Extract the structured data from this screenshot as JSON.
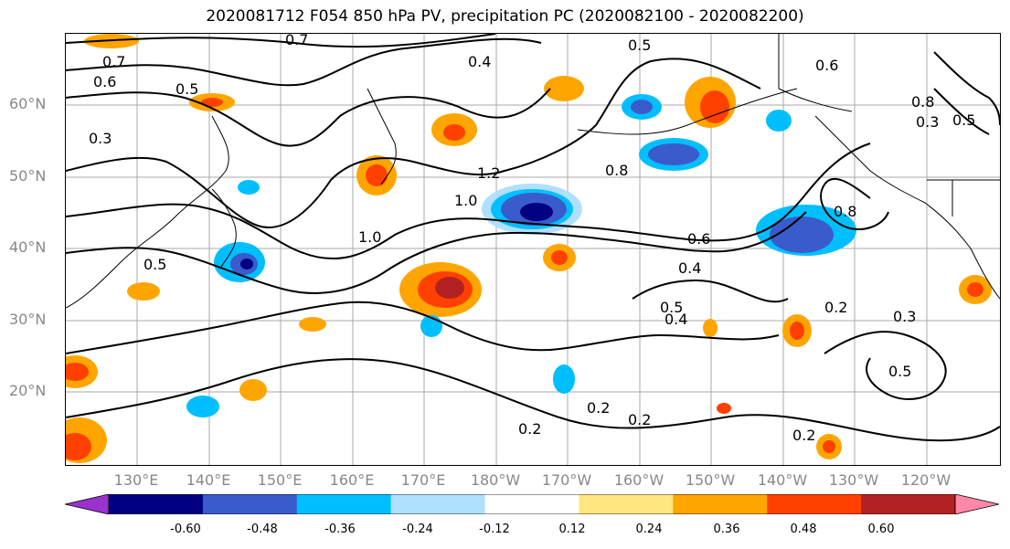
{
  "title": "2020081712 F054 850 hPa PV, precipitation PC (2020082100 - 2020082200)",
  "lat_labels": [
    "60°N",
    "50°N",
    "40°N",
    "30°N",
    "20°N"
  ],
  "lon_labels": [
    "130°E",
    "140°E",
    "150°E",
    "160°E",
    "170°E",
    "180°W",
    "170°W",
    "160°W",
    "150°W",
    "140°W",
    "130°W",
    "120°W"
  ],
  "contour_labels": [
    "0.7",
    "0.5",
    "0.6",
    "0.7",
    "0.4",
    "0.5",
    "0.8",
    "0.3",
    "1.2",
    "1.0",
    "1.0",
    "0.5",
    "0.8",
    "0.6",
    "0.4",
    "0.5",
    "0.4",
    "0.2",
    "0.3",
    "0.5",
    "0.2",
    "0.2",
    "0.2",
    "0.2",
    "0.6",
    "0.8",
    "0.3",
    "0.5"
  ],
  "colorbar": {
    "ticks": [
      "-0.60",
      "-0.48",
      "-0.36",
      "-0.24",
      "-0.12",
      "0.12",
      "0.24",
      "0.36",
      "0.48",
      "0.60"
    ],
    "colors": [
      "#9932cc",
      "#000080",
      "#3a5bcc",
      "#00bfff",
      "#b0e0ff",
      "#ffffff",
      "#ffe680",
      "#ffa500",
      "#ff4000",
      "#b22222",
      "#ff88aa"
    ]
  }
}
